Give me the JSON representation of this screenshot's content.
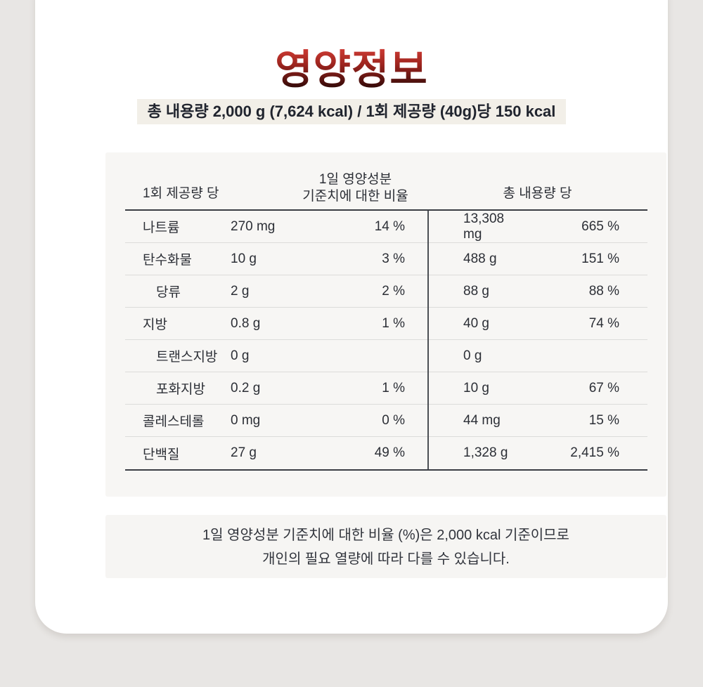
{
  "title": "영양정보",
  "subtitle": "총 내용량 2,000 g (7,624 kcal) / 1회 제공량 (40g)당 150 kcal",
  "table": {
    "header": {
      "serving": "1회 제공량 당",
      "daily_line1": "1일 영양성분",
      "daily_line2": "기준치에 대한 비율",
      "total": "총 내용량 당"
    },
    "rows": [
      {
        "name": "나트륨",
        "serving_amount": "270 mg",
        "serving_pct": "14 %",
        "total_amount": "13,308 mg",
        "total_pct": "665 %"
      },
      {
        "name": "탄수화물",
        "serving_amount": "10 g",
        "serving_pct": "3 %",
        "total_amount": "488 g",
        "total_pct": "151 %"
      },
      {
        "name": "당류",
        "serving_amount": "2 g",
        "serving_pct": "2 %",
        "total_amount": "88 g",
        "total_pct": "88 %"
      },
      {
        "name": "지방",
        "serving_amount": "0.8 g",
        "serving_pct": "1 %",
        "total_amount": "40 g",
        "total_pct": "74 %"
      },
      {
        "name": "트랜스지방",
        "serving_amount": "0 g",
        "serving_pct": "",
        "total_amount": "0 g",
        "total_pct": ""
      },
      {
        "name": "포화지방",
        "serving_amount": "0.2 g",
        "serving_pct": "1 %",
        "total_amount": "10 g",
        "total_pct": "67 %"
      },
      {
        "name": "콜레스테롤",
        "serving_amount": "0 mg",
        "serving_pct": "0 %",
        "total_amount": "44 mg",
        "total_pct": "15 %"
      },
      {
        "name": "단백질",
        "serving_amount": "27 g",
        "serving_pct": "49 %",
        "total_amount": "1,328 g",
        "total_pct": "2,415 %"
      }
    ]
  },
  "note": {
    "line1": "1일 영양성분 기준치에 대한 비율 (%)은 2,000 kcal 기준이므로",
    "line2": "개인의 필요 열량에 따라 다를 수 있습니다."
  },
  "colors": {
    "page_bg": "#e8e6e4",
    "card_bg": "#ffffff",
    "panel_bg": "#f7f6f4",
    "subtitle_bg": "#f2efe8",
    "note_bg": "#f6f5f3",
    "title_gradient_top": "#e4463e",
    "title_gradient_bottom": "#1f0504",
    "text": "#2c2f36",
    "line_strong": "#3a3d43",
    "line_light": "#dcdcda"
  }
}
